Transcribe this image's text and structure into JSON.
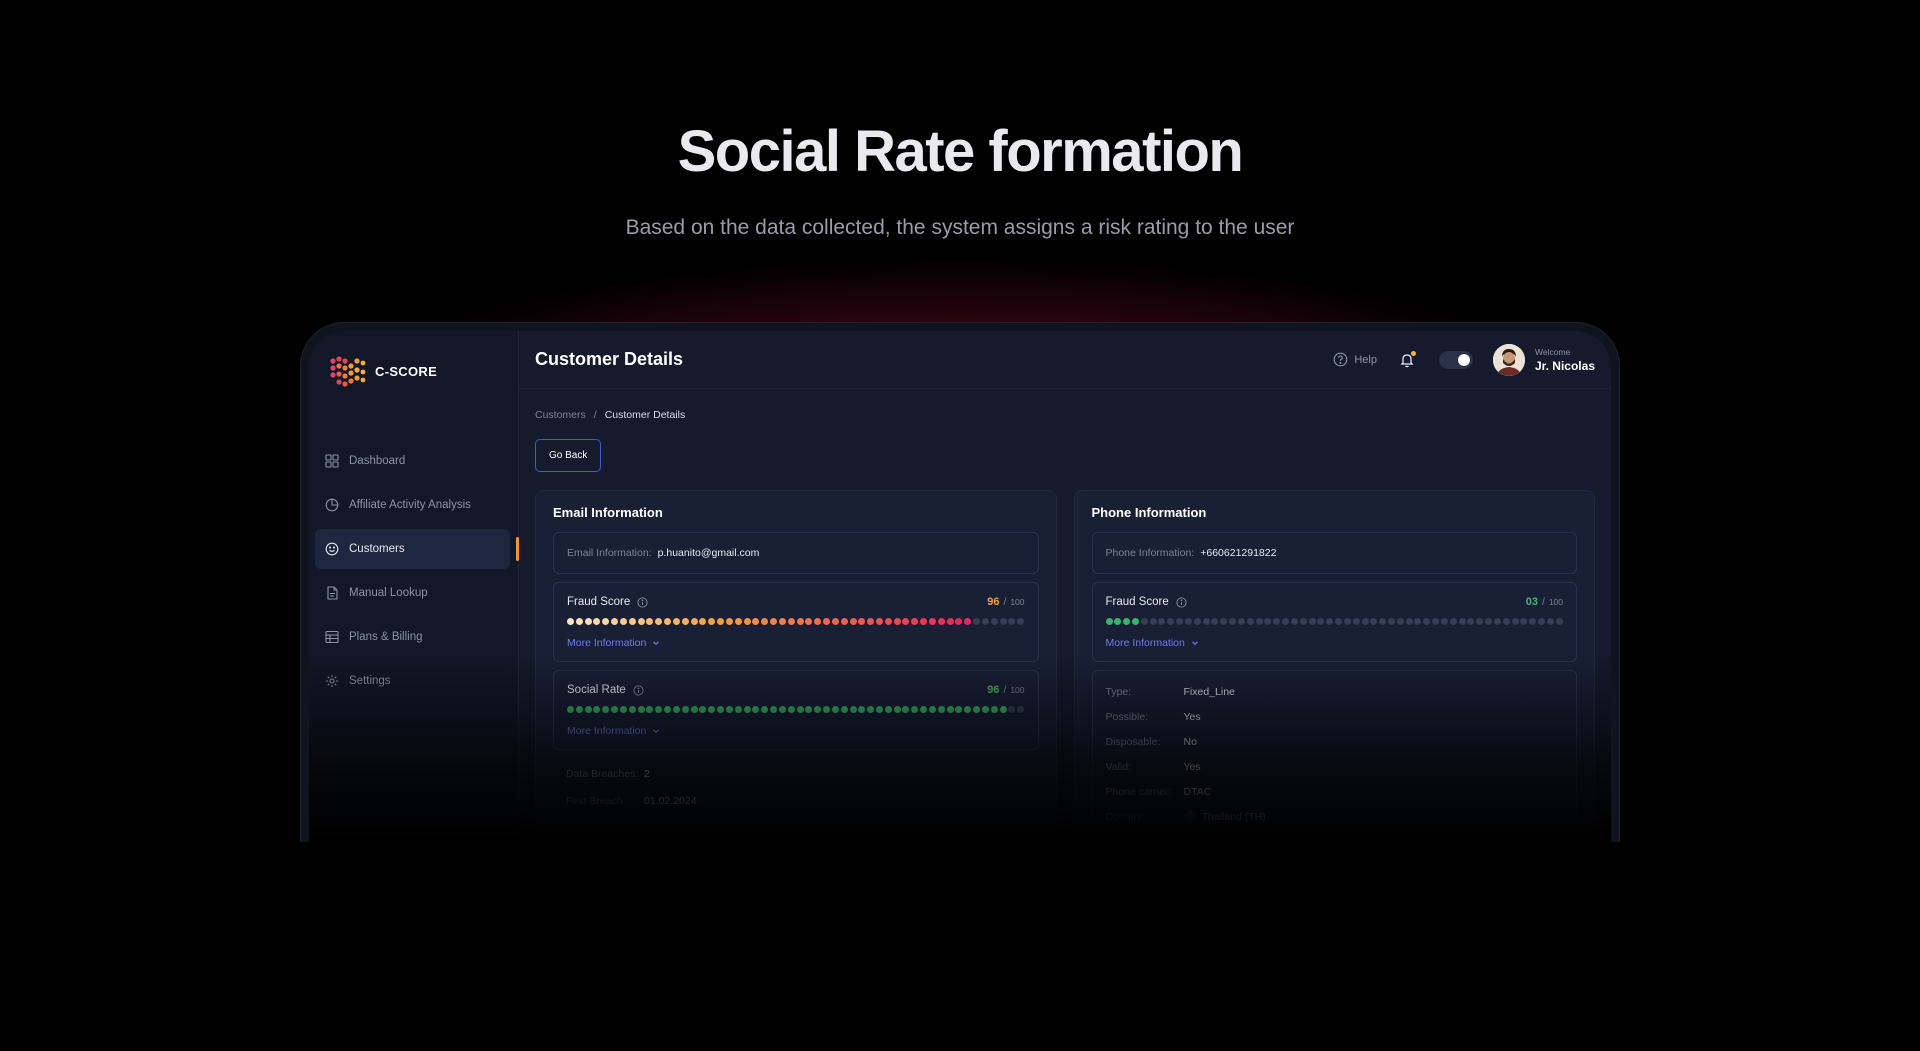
{
  "hero": {
    "title": "Social Rate formation",
    "subtitle": "Based on the data collected, the system assigns a risk rating to the user"
  },
  "app": {
    "logo_text": "C-SCORE",
    "sidebar": {
      "items": [
        {
          "label": "Dashboard",
          "icon": "grid-icon"
        },
        {
          "label": "Affiliate Activity Analysis",
          "icon": "pie-chart-icon"
        },
        {
          "label": "Customers",
          "icon": "smile-icon",
          "active": true
        },
        {
          "label": "Manual Lookup",
          "icon": "document-icon"
        },
        {
          "label": "Plans & Billing",
          "icon": "table-icon"
        },
        {
          "label": "Settings",
          "icon": "gear-icon"
        }
      ]
    },
    "header": {
      "title": "Customer Details",
      "help_label": "Help",
      "welcome": "Welcome",
      "user_name": "Jr. Nicolas"
    },
    "breadcrumb": {
      "parent": "Customers",
      "separator": "/",
      "current": "Customer Details"
    },
    "go_back_label": "Go Back",
    "email_card": {
      "title": "Email Information",
      "field_label": "Email Information:",
      "field_value": "p.huanito@gmail.com",
      "fraud": {
        "label": "Fraud Score",
        "value": "96",
        "sep": "/",
        "max": "100",
        "color": "#f5a340"
      },
      "social": {
        "label": "Social Rate",
        "value": "96",
        "sep": "/",
        "max": "100",
        "color": "#3fb86e"
      },
      "more_label": "More Information",
      "details": [
        {
          "k": "Data Breaches:",
          "v": "2"
        },
        {
          "k": "First Breach:",
          "v": "01.02.2024"
        }
      ]
    },
    "phone_card": {
      "title": "Phone Information",
      "field_label": "Phone Information:",
      "field_value": "+660621291822",
      "fraud": {
        "label": "Fraud Score",
        "value": "03",
        "sep": "/",
        "max": "100",
        "color": "#3fb86e"
      },
      "more_label": "More Information",
      "details": [
        {
          "k": "Type:",
          "v": "Fixed_Line"
        },
        {
          "k": "Possible:",
          "v": "Yes"
        },
        {
          "k": "Disposable:",
          "v": "No"
        },
        {
          "k": "Valid:",
          "v": "Yes"
        },
        {
          "k": "Phone carrier:",
          "v": "DTAC"
        },
        {
          "k": "Country:",
          "v": "Thailand (TH)"
        }
      ]
    }
  }
}
